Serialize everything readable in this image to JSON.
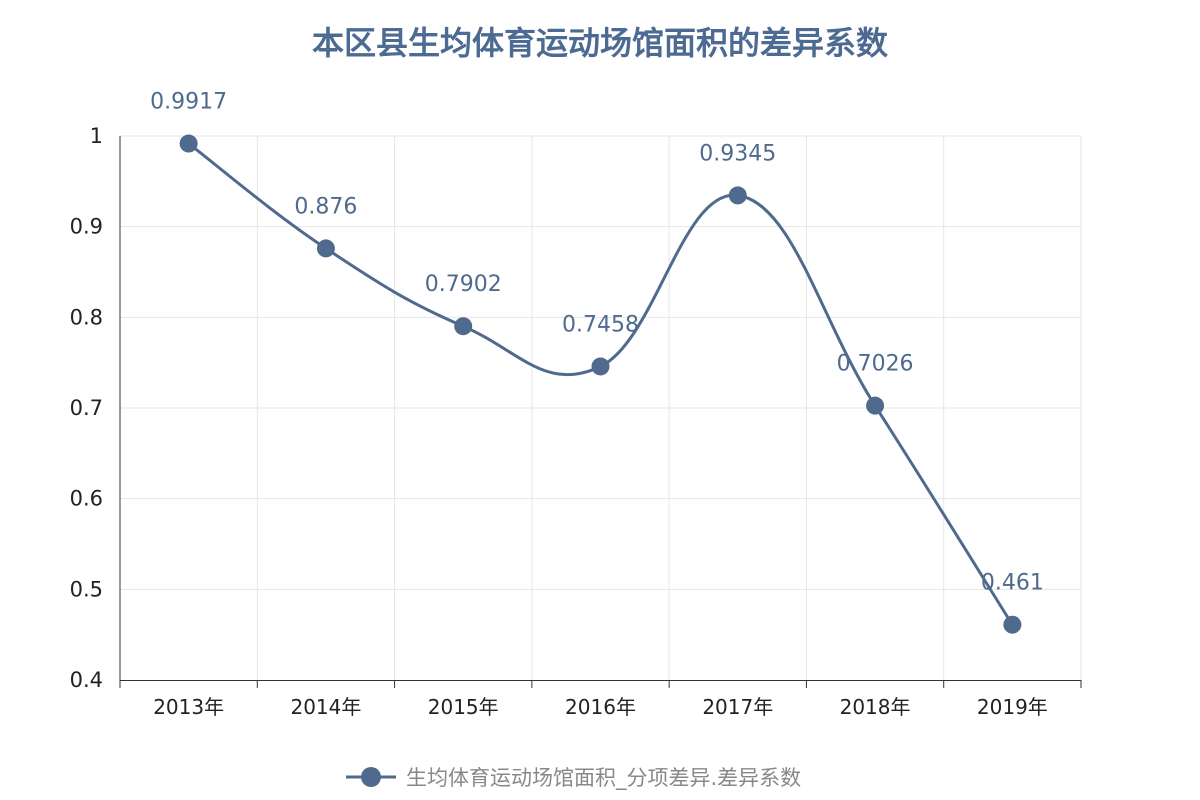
{
  "chart_data": {
    "type": "line",
    "title": "本区县生均体育运动场馆面积的差异系数",
    "categories": [
      "2013年",
      "2014年",
      "2015年",
      "2016年",
      "2017年",
      "2018年",
      "2019年"
    ],
    "series": [
      {
        "name": "生均体育运动场馆面积_分项差异.差异系数",
        "values": [
          0.9917,
          0.876,
          0.7902,
          0.7458,
          0.9345,
          0.7026,
          0.461
        ],
        "labels": [
          "0.9917",
          "0.876",
          "0.7902",
          "0.7458",
          "0.9345",
          "0.7026",
          "0.461"
        ]
      }
    ],
    "yticks": [
      "0.4",
      "0.5",
      "0.6",
      "0.7",
      "0.8",
      "0.9",
      "1"
    ],
    "ylim": [
      0.4,
      1.0
    ],
    "smooth": true,
    "grid": true,
    "legend_position": "bottom",
    "colors": {
      "series": "#506a8e",
      "title": "#4d6a92",
      "grid": "#e6e6e6",
      "axis": "#333333"
    }
  }
}
